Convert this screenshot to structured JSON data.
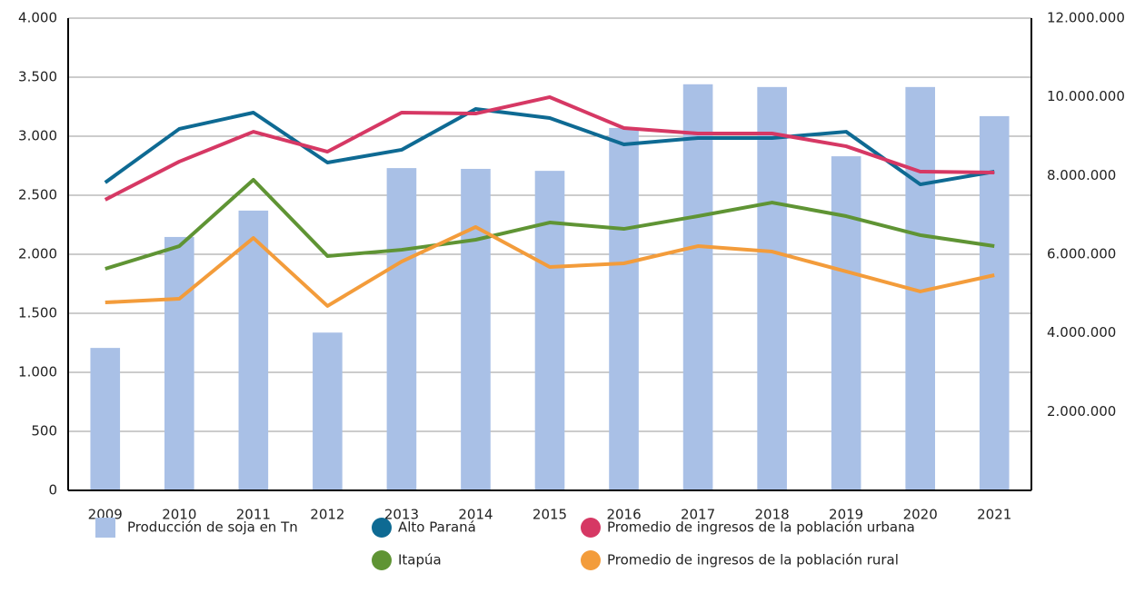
{
  "chart_data": {
    "type": "combo",
    "categories": [
      "2009",
      "2010",
      "2011",
      "2012",
      "2013",
      "2014",
      "2015",
      "2016",
      "2017",
      "2018",
      "2019",
      "2020",
      "2021"
    ],
    "ylim": [
      0,
      4000
    ],
    "yticks": [
      0,
      500,
      {
        "value": 1000,
        "label": "1.000"
      },
      {
        "value": 1500,
        "label": "1.500"
      },
      {
        "value": 2000,
        "label": "2.000"
      },
      {
        "value": 2500,
        "label": "2.500"
      },
      {
        "value": 3000,
        "label": "3.000"
      },
      {
        "value": 3500,
        "label": "3.500"
      },
      {
        "value": 4000,
        "label": "4.000"
      }
    ],
    "y2lim": [
      0,
      12000000
    ],
    "y2ticks": [
      {
        "value": 2000000,
        "label": "2.000.000"
      },
      {
        "value": 4000000,
        "label": "4.000.000"
      },
      {
        "value": 6000000,
        "label": "6.000.000"
      },
      {
        "value": 8000000,
        "label": "8.000.000"
      },
      {
        "value": 10000000,
        "label": "10.000.000"
      },
      {
        "value": 12000000,
        "label": "12.000.000"
      }
    ],
    "grid": true,
    "legend": "bottom",
    "series": [
      {
        "name": "Producción de soja en Tn",
        "type": "bar",
        "axis": "y2",
        "color": "#a9c0e6",
        "values": [
          3620000,
          6440000,
          7110000,
          4010000,
          8190000,
          8170000,
          8120000,
          9210000,
          10320000,
          10250000,
          8490000,
          10250000,
          9510000
        ]
      },
      {
        "name": "Alto Paraná",
        "type": "line",
        "color": "#0e6a93",
        "values": [
          2608,
          3062,
          3200,
          2777,
          2885,
          3231,
          3154,
          2931,
          2985,
          2985,
          3038,
          2592,
          2700
        ]
      },
      {
        "name": "Promedio de ingresos de la población urbana",
        "type": "line",
        "color": "#d63864",
        "values": [
          2462,
          2785,
          3038,
          2869,
          3200,
          3192,
          3331,
          3069,
          3023,
          3023,
          2915,
          2700,
          2692
        ]
      },
      {
        "name": "Itapúa",
        "type": "line",
        "color": "#5f9434",
        "values": [
          1877,
          2069,
          2631,
          1985,
          2038,
          2123,
          2269,
          2215,
          2323,
          2438,
          2323,
          2162,
          2069
        ]
      },
      {
        "name": "Promedio de ingresos de la población rural",
        "type": "line",
        "color": "#f39c3b",
        "values": [
          1592,
          1623,
          2138,
          1562,
          1938,
          2231,
          1892,
          1923,
          2069,
          2023,
          1854,
          1685,
          1823
        ]
      }
    ]
  }
}
